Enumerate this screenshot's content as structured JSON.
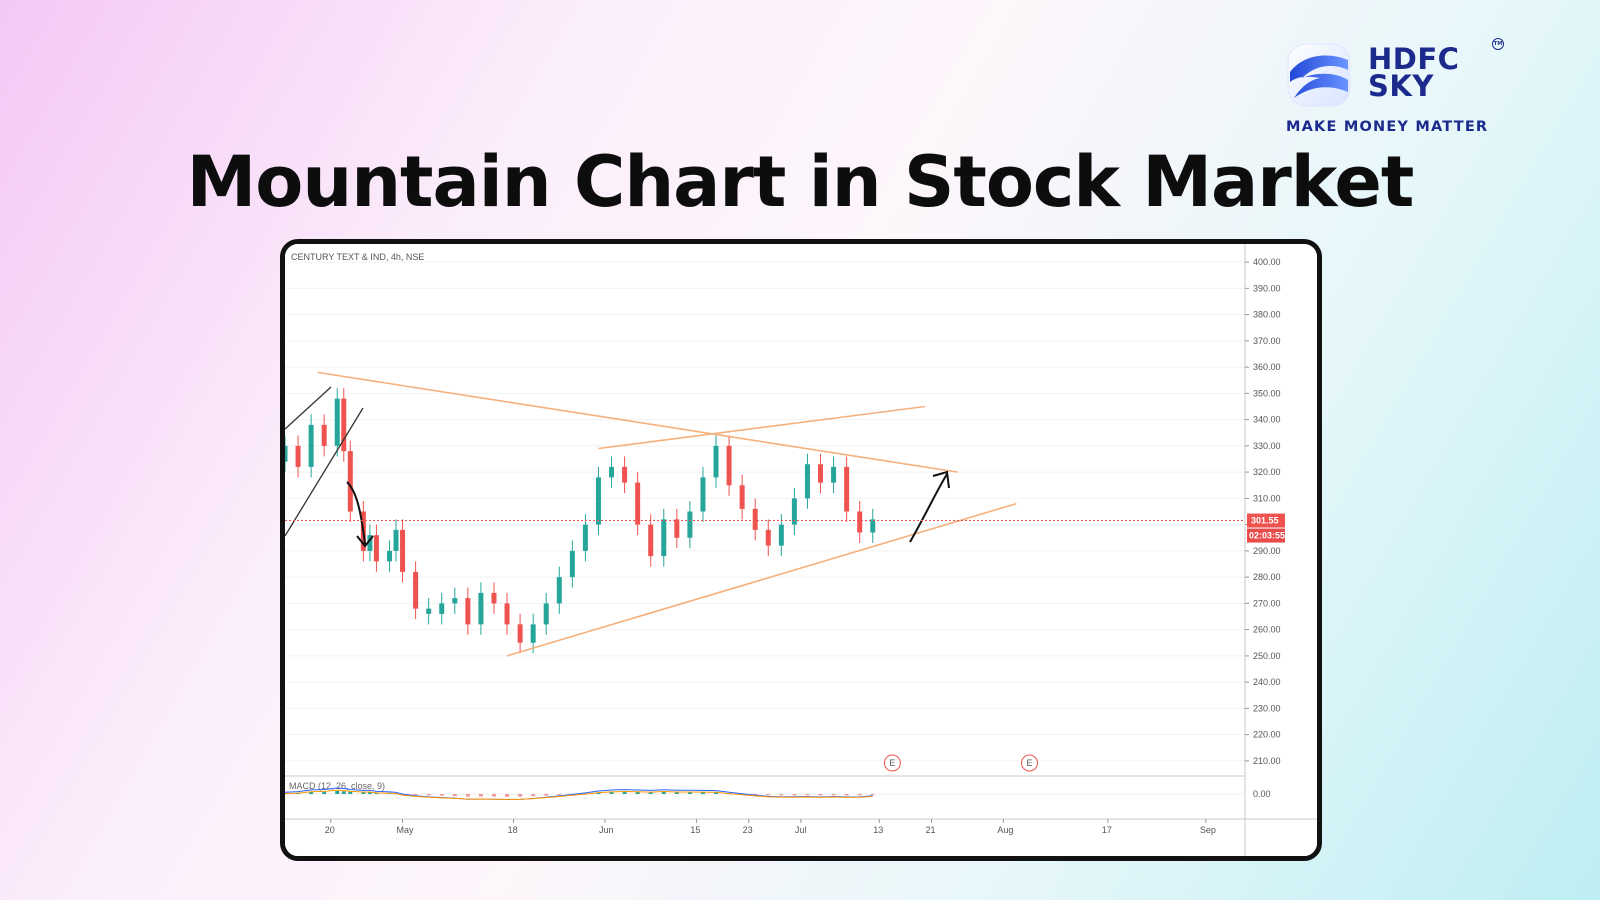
{
  "header": {
    "title": "Mountain Chart in Stock Market"
  },
  "logo": {
    "line1": "HDFC",
    "line2": "SKY",
    "trademark": "TM",
    "tagline": "MAKE MONEY MATTER",
    "colors": {
      "brand": "#1b2a8c",
      "accent": "#3d7cff"
    }
  },
  "chart_data": {
    "type": "candlestick",
    "symbol_label": "CENTURY TEXT & IND, 4h, NSE",
    "ylim": [
      205,
      405
    ],
    "y_ticks": [
      "400.00",
      "390.00",
      "380.00",
      "370.00",
      "360.00",
      "350.00",
      "340.00",
      "330.00",
      "320.00",
      "310.00",
      "300.00",
      "290.00",
      "280.00",
      "270.00",
      "260.00",
      "250.00",
      "240.00",
      "230.00",
      "220.00",
      "210.00"
    ],
    "x_ticks": [
      {
        "label": "20",
        "day": 20
      },
      {
        "label": "May",
        "day": 31
      },
      {
        "label": "18",
        "day": 48
      },
      {
        "label": "Jun",
        "day": 62
      },
      {
        "label": "15",
        "day": 76
      },
      {
        "label": "23",
        "day": 84
      },
      {
        "label": "Jul",
        "day": 92
      },
      {
        "label": "13",
        "day": 104
      },
      {
        "label": "21",
        "day": 112
      },
      {
        "label": "Aug",
        "day": 123
      },
      {
        "label": "17",
        "day": 139
      },
      {
        "label": "Sep",
        "day": 154
      }
    ],
    "xlim": [
      13,
      160
    ],
    "current_price": "301.55",
    "countdown": "02:03:55",
    "current_value": 301.55,
    "colors": {
      "up": "#26a69a",
      "down": "#ef5350",
      "trendline": "#f5b07c",
      "price_line": "#ef5350"
    },
    "candles_daily_close": [
      [
        13,
        330,
        1
      ],
      [
        15,
        322,
        0
      ],
      [
        17,
        338,
        1
      ],
      [
        19,
        330,
        0
      ],
      [
        21,
        348,
        1
      ],
      [
        22,
        328,
        0
      ],
      [
        23,
        305,
        0
      ],
      [
        25,
        290,
        0
      ],
      [
        26,
        296,
        1
      ],
      [
        27,
        286,
        0
      ],
      [
        29,
        290,
        1
      ],
      [
        30,
        298,
        1
      ],
      [
        31,
        282,
        0
      ],
      [
        33,
        268,
        0
      ],
      [
        35,
        266,
        1
      ],
      [
        37,
        270,
        1
      ],
      [
        39,
        272,
        1
      ],
      [
        41,
        262,
        0
      ],
      [
        43,
        274,
        1
      ],
      [
        45,
        270,
        0
      ],
      [
        47,
        262,
        0
      ],
      [
        49,
        255,
        0
      ],
      [
        51,
        262,
        1
      ],
      [
        53,
        270,
        1
      ],
      [
        55,
        280,
        1
      ],
      [
        57,
        290,
        1
      ],
      [
        59,
        300,
        1
      ],
      [
        61,
        318,
        1
      ],
      [
        63,
        322,
        1
      ],
      [
        65,
        316,
        0
      ],
      [
        67,
        300,
        0
      ],
      [
        69,
        288,
        0
      ],
      [
        71,
        302,
        1
      ],
      [
        73,
        295,
        0
      ],
      [
        75,
        305,
        1
      ],
      [
        77,
        318,
        1
      ],
      [
        79,
        330,
        1
      ],
      [
        81,
        315,
        0
      ],
      [
        83,
        306,
        0
      ],
      [
        85,
        298,
        0
      ],
      [
        87,
        292,
        0
      ],
      [
        89,
        300,
        1
      ],
      [
        91,
        310,
        1
      ],
      [
        93,
        323,
        1
      ],
      [
        95,
        316,
        0
      ],
      [
        97,
        322,
        1
      ],
      [
        99,
        305,
        0
      ],
      [
        101,
        297,
        0
      ],
      [
        103,
        302,
        1
      ]
    ],
    "trendlines": [
      {
        "name": "upper",
        "from": [
          18,
          358
        ],
        "to": [
          116,
          320
        ]
      },
      {
        "name": "lower",
        "from": [
          47,
          250
        ],
        "to": [
          125,
          308
        ]
      },
      {
        "name": "channel",
        "from": [
          61,
          329
        ],
        "to": [
          111,
          345
        ]
      }
    ],
    "annotations": [
      "E",
      "E"
    ],
    "indicator": {
      "label": "MACD (12, 26, close, 9)",
      "zero_tick": "0.00"
    }
  }
}
